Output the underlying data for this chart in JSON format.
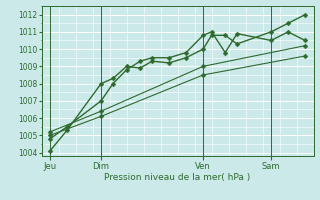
{
  "xlabel": "Pression niveau de la mer( hPa )",
  "background_color": "#cce9e9",
  "grid_color": "#aadddd",
  "line_color": "#2d6a2d",
  "ylim": [
    1003.8,
    1012.5
  ],
  "yticks": [
    1004,
    1005,
    1006,
    1007,
    1008,
    1009,
    1010,
    1011,
    1012
  ],
  "day_labels": [
    "Jeu",
    "Dim",
    "Ven",
    "Sam"
  ],
  "day_positions": [
    0.5,
    3.5,
    9.5,
    13.5
  ],
  "vline_positions": [
    0.5,
    3.5,
    9.5,
    13.5
  ],
  "xlim": [
    0,
    16
  ],
  "series": [
    {
      "x": [
        0.5,
        1.5,
        3.5,
        4.2,
        5.0,
        5.8,
        6.5,
        7.5,
        8.5,
        9.5,
        10.0,
        10.8,
        11.5,
        13.5,
        14.5,
        15.5
      ],
      "y": [
        1004.1,
        1005.3,
        1008.0,
        1008.3,
        1009.0,
        1008.9,
        1009.3,
        1009.2,
        1009.5,
        1010.0,
        1010.8,
        1010.8,
        1010.3,
        1011.0,
        1011.5,
        1012.0
      ],
      "lw": 1.0,
      "ms": 2.5
    },
    {
      "x": [
        0.5,
        1.5,
        3.5,
        4.2,
        5.0,
        5.8,
        6.5,
        7.5,
        8.5,
        9.5,
        10.0,
        10.8,
        11.5,
        13.5,
        14.5,
        15.5
      ],
      "y": [
        1004.8,
        1005.5,
        1007.0,
        1008.0,
        1008.8,
        1009.3,
        1009.5,
        1009.5,
        1009.8,
        1010.8,
        1011.0,
        1009.8,
        1010.9,
        1010.5,
        1011.0,
        1010.5
      ],
      "lw": 1.0,
      "ms": 2.5
    },
    {
      "x": [
        0.5,
        3.5,
        9.5,
        15.5
      ],
      "y": [
        1005.0,
        1006.1,
        1008.5,
        1009.6
      ],
      "lw": 0.8,
      "ms": 2.5
    },
    {
      "x": [
        0.5,
        3.5,
        9.5,
        15.5
      ],
      "y": [
        1005.2,
        1006.4,
        1009.0,
        1010.2
      ],
      "lw": 0.8,
      "ms": 2.5
    }
  ]
}
